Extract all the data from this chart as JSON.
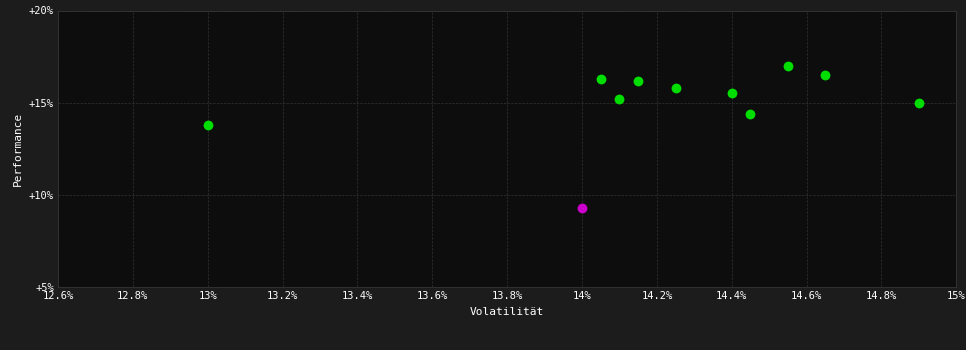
{
  "title": "",
  "xlabel": "Volatilität",
  "ylabel": "Performance",
  "background_color": "#1c1c1c",
  "plot_bg_color": "#0d0d0d",
  "grid_color": "#3a3a3a",
  "text_color": "#ffffff",
  "xlim": [
    0.126,
    0.15
  ],
  "ylim": [
    0.05,
    0.2
  ],
  "xticks": [
    0.126,
    0.128,
    0.13,
    0.132,
    0.134,
    0.136,
    0.138,
    0.14,
    0.142,
    0.144,
    0.146,
    0.148,
    0.15
  ],
  "xtick_labels": [
    "12.6%",
    "12.8%",
    "13%",
    "13.2%",
    "13.4%",
    "13.6%",
    "13.8%",
    "14%",
    "14.2%",
    "14.4%",
    "14.6%",
    "14.8%",
    "15%"
  ],
  "yticks": [
    0.05,
    0.1,
    0.15,
    0.2
  ],
  "ytick_labels": [
    "+5%",
    "+10%",
    "+15%",
    "+20%"
  ],
  "green_points": [
    [
      0.13,
      0.138
    ],
    [
      0.1405,
      0.163
    ],
    [
      0.1415,
      0.162
    ],
    [
      0.1425,
      0.158
    ],
    [
      0.141,
      0.152
    ],
    [
      0.144,
      0.155
    ],
    [
      0.1445,
      0.144
    ],
    [
      0.1455,
      0.17
    ],
    [
      0.1465,
      0.165
    ],
    [
      0.149,
      0.15
    ]
  ],
  "magenta_points": [
    [
      0.14,
      0.093
    ]
  ],
  "point_color_green": "#00dd00",
  "point_color_magenta": "#cc00cc",
  "marker_size": 5,
  "grid_linestyle": "--"
}
